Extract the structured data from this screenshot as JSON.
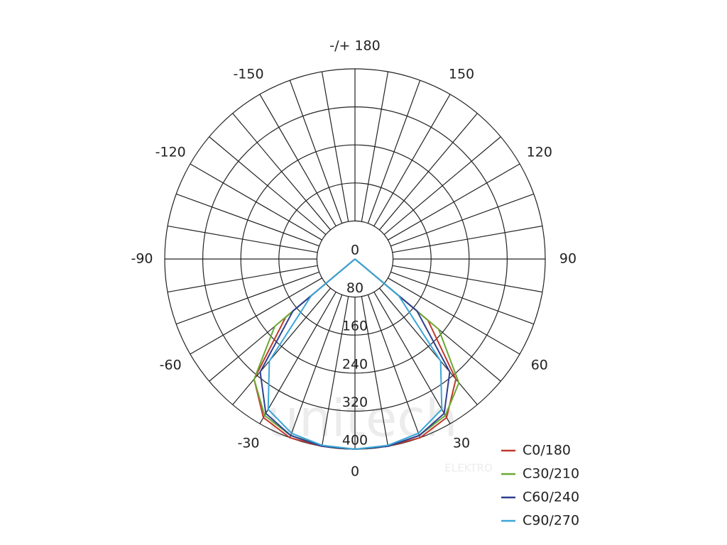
{
  "chart_data": {
    "type": "polar",
    "x": [
      -60,
      -50,
      -40,
      -30,
      -20,
      -10,
      0,
      10,
      20,
      30,
      40,
      50,
      60
    ],
    "series": [
      {
        "name": "C0/180",
        "color": "#c0392b",
        "values": [
          0,
          190,
          330,
          385,
          400,
          400,
          400,
          400,
          400,
          385,
          330,
          200,
          0
        ]
      },
      {
        "name": "C30/210",
        "color": "#6aa832",
        "values": [
          0,
          220,
          330,
          380,
          395,
          398,
          400,
          400,
          395,
          380,
          340,
          230,
          0
        ]
      },
      {
        "name": "C60/240",
        "color": "#2e3f8f",
        "values": [
          0,
          170,
          310,
          375,
          395,
          400,
          400,
          400,
          395,
          375,
          310,
          170,
          0
        ]
      },
      {
        "name": "C90/270",
        "color": "#3aa6d8",
        "values": [
          0,
          120,
          280,
          365,
          390,
          398,
          400,
          398,
          390,
          365,
          280,
          120,
          0
        ]
      }
    ],
    "rlim": [
      0,
      400
    ],
    "rticks": [
      0,
      80,
      160,
      240,
      320,
      400
    ],
    "thetaticks": [
      {
        "value": 180,
        "label": "-/+ 180"
      },
      150,
      120,
      90,
      60,
      30,
      0,
      -30,
      -60,
      -90,
      -120,
      -150
    ],
    "watermark": "unitech",
    "watermark_sub": "ELEKTRO"
  }
}
